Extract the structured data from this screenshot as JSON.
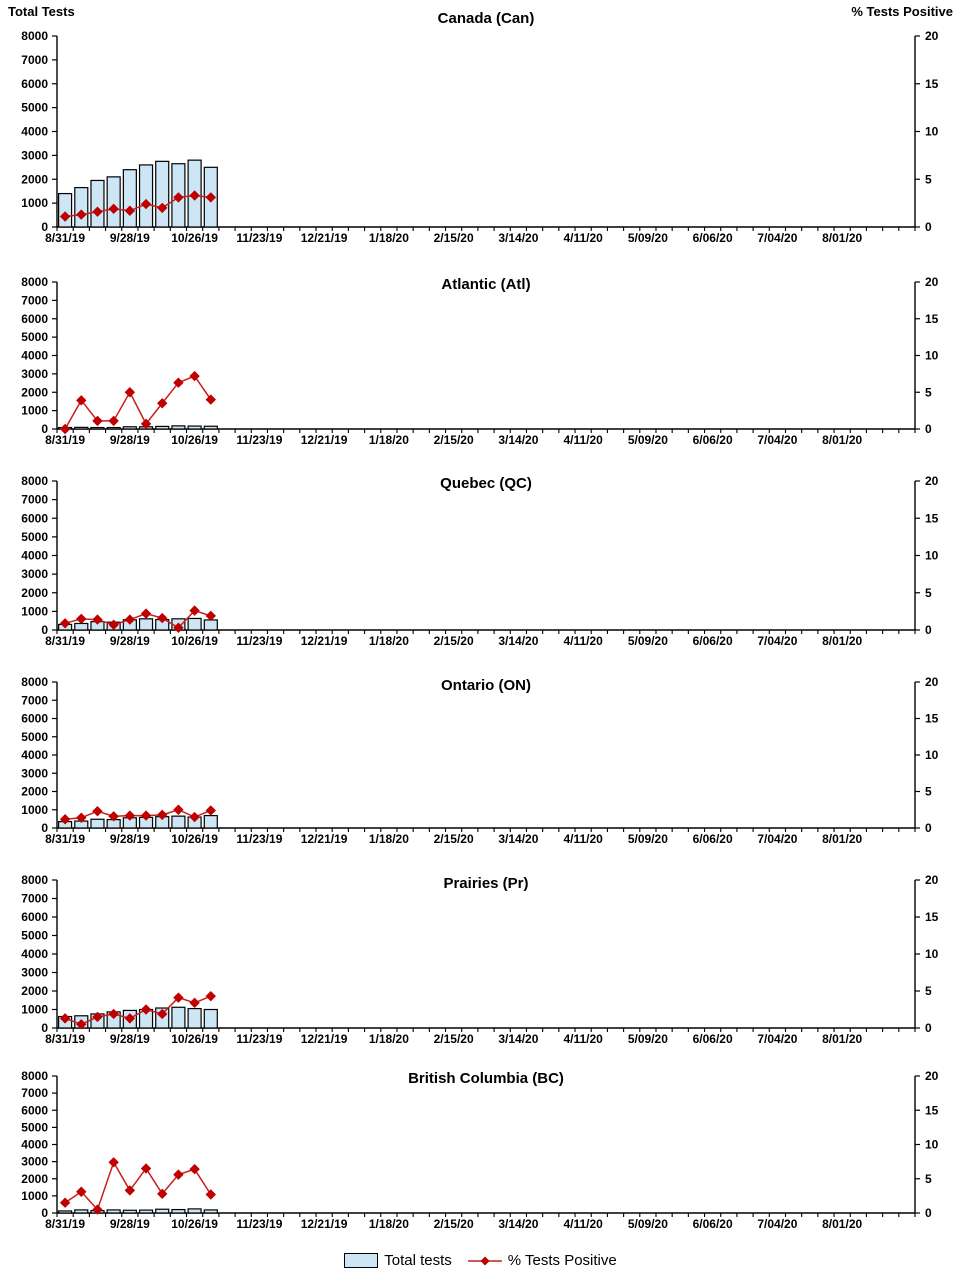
{
  "axes": {
    "left_title": "Total Tests",
    "right_title": "% Tests Positive",
    "left_range": [
      0,
      8000
    ],
    "left_tick_step": 1000,
    "left_ticks": [
      0,
      1000,
      2000,
      3000,
      4000,
      5000,
      6000,
      7000,
      8000
    ],
    "right_range": [
      0,
      20
    ],
    "right_ticks": [
      0,
      5,
      10,
      15,
      20
    ],
    "weeks_total": 53,
    "label_every_n_weeks": 4,
    "x_tick_labels": [
      "8/31/19",
      "9/28/19",
      "10/26/19",
      "11/23/19",
      "12/21/19",
      "1/18/20",
      "2/15/20",
      "3/14/20",
      "4/11/20",
      "5/09/20",
      "6/06/20",
      "7/04/20",
      "8/01/20"
    ]
  },
  "colors": {
    "bar_fill": "#CDE6F5",
    "bar_border": "#000000",
    "line": "#C81E1E",
    "marker": "#C00000",
    "text": "#000000"
  },
  "legend": {
    "total_tests": "Total tests",
    "pct_positive": "% Tests Positive"
  },
  "chart_data": [
    {
      "type": "bar+line",
      "title": "Canada (Can)",
      "x": [
        "8/31/19",
        "9/07/19",
        "9/14/19",
        "9/21/19",
        "9/28/19",
        "10/05/19",
        "10/12/19",
        "10/19/19",
        "10/26/19",
        "11/02/19"
      ],
      "series": [
        {
          "name": "Total tests",
          "type": "bar",
          "axis": "left",
          "values": [
            1400,
            1650,
            1950,
            2100,
            2400,
            2600,
            2750,
            2650,
            2800,
            2500
          ]
        },
        {
          "name": "% Tests Positive",
          "type": "line",
          "axis": "right",
          "values": [
            1.1,
            1.3,
            1.6,
            1.9,
            1.7,
            2.4,
            2.0,
            3.1,
            3.3,
            3.1
          ]
        }
      ]
    },
    {
      "type": "bar+line",
      "title": "Atlantic (Atl)",
      "x": [
        "8/31/19",
        "9/07/19",
        "9/14/19",
        "9/21/19",
        "9/28/19",
        "10/05/19",
        "10/12/19",
        "10/19/19",
        "10/26/19",
        "11/02/19"
      ],
      "series": [
        {
          "name": "Total tests",
          "type": "bar",
          "axis": "left",
          "values": [
            80,
            90,
            80,
            80,
            120,
            120,
            140,
            170,
            160,
            150
          ]
        },
        {
          "name": "% Tests Positive",
          "type": "line",
          "axis": "right",
          "values": [
            0.0,
            3.9,
            1.1,
            1.1,
            5.0,
            0.7,
            3.5,
            6.3,
            7.2,
            4.0
          ]
        }
      ]
    },
    {
      "type": "bar+line",
      "title": "Quebec (QC)",
      "x": [
        "8/31/19",
        "9/07/19",
        "9/14/19",
        "9/21/19",
        "9/28/19",
        "10/05/19",
        "10/12/19",
        "10/19/19",
        "10/26/19",
        "11/02/19"
      ],
      "series": [
        {
          "name": "Total tests",
          "type": "bar",
          "axis": "left",
          "values": [
            300,
            350,
            450,
            420,
            550,
            600,
            560,
            600,
            620,
            540
          ]
        },
        {
          "name": "% Tests Positive",
          "type": "line",
          "axis": "right",
          "values": [
            0.9,
            1.5,
            1.4,
            0.7,
            1.4,
            2.2,
            1.6,
            0.3,
            2.6,
            1.9
          ]
        }
      ]
    },
    {
      "type": "bar+line",
      "title": "Ontario (ON)",
      "x": [
        "8/31/19",
        "9/07/19",
        "9/14/19",
        "9/21/19",
        "9/28/19",
        "10/05/19",
        "10/12/19",
        "10/19/19",
        "10/26/19",
        "11/02/19"
      ],
      "series": [
        {
          "name": "Total tests",
          "type": "bar",
          "axis": "left",
          "values": [
            350,
            380,
            480,
            460,
            560,
            580,
            620,
            650,
            600,
            680
          ]
        },
        {
          "name": "% Tests Positive",
          "type": "line",
          "axis": "right",
          "values": [
            1.2,
            1.4,
            2.3,
            1.6,
            1.7,
            1.7,
            1.8,
            2.5,
            1.5,
            2.4
          ]
        }
      ]
    },
    {
      "type": "bar+line",
      "title": "Prairies (Pr)",
      "x": [
        "8/31/19",
        "9/07/19",
        "9/14/19",
        "9/21/19",
        "9/28/19",
        "10/05/19",
        "10/12/19",
        "10/19/19",
        "10/26/19",
        "11/02/19"
      ],
      "series": [
        {
          "name": "Total tests",
          "type": "bar",
          "axis": "left",
          "values": [
            620,
            660,
            760,
            870,
            950,
            1000,
            1080,
            1120,
            1050,
            1000
          ]
        },
        {
          "name": "% Tests Positive",
          "type": "line",
          "axis": "right",
          "values": [
            1.3,
            0.5,
            1.5,
            1.9,
            1.3,
            2.5,
            1.9,
            4.1,
            3.4,
            4.3
          ]
        }
      ]
    },
    {
      "type": "bar+line",
      "title": "British Columbia (BC)",
      "x": [
        "8/31/19",
        "9/07/19",
        "9/14/19",
        "9/21/19",
        "9/28/19",
        "10/05/19",
        "10/12/19",
        "10/19/19",
        "10/26/19",
        "11/02/19"
      ],
      "series": [
        {
          "name": "Total tests",
          "type": "bar",
          "axis": "left",
          "values": [
            120,
            180,
            140,
            180,
            160,
            170,
            220,
            200,
            240,
            180
          ]
        },
        {
          "name": "% Tests Positive",
          "type": "line",
          "axis": "right",
          "values": [
            1.5,
            3.1,
            0.5,
            7.4,
            3.3,
            6.5,
            2.8,
            5.6,
            6.4,
            2.7
          ]
        }
      ]
    }
  ]
}
